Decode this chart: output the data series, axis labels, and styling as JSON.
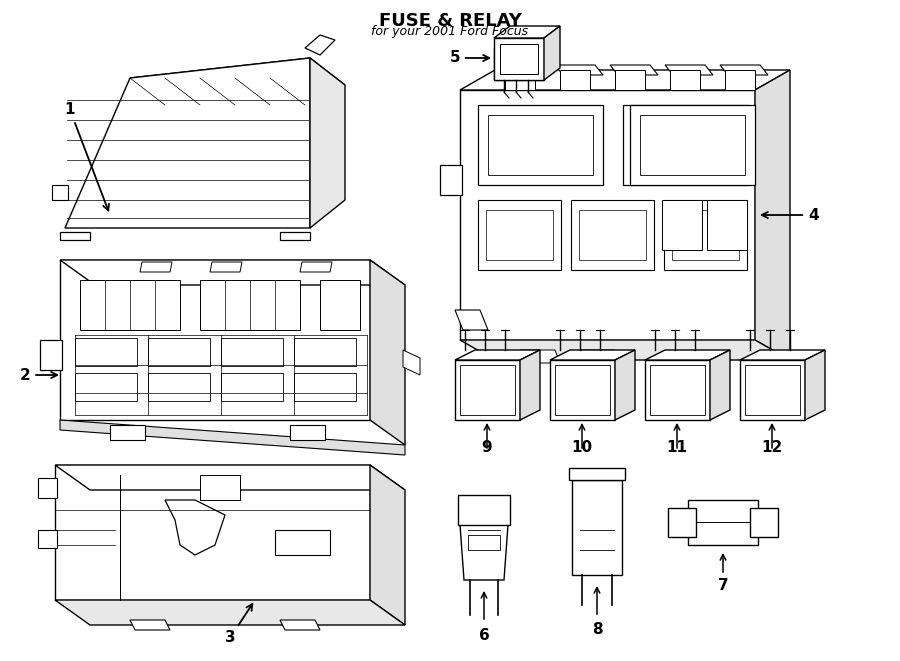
{
  "title": "FUSE & RELAY",
  "subtitle": "for your 2001 Ford Focus",
  "bg": "#ffffff",
  "lc": "#000000",
  "fig_w": 9.0,
  "fig_h": 6.61,
  "dpi": 100,
  "xlim": [
    0,
    900
  ],
  "ylim": [
    0,
    661
  ]
}
